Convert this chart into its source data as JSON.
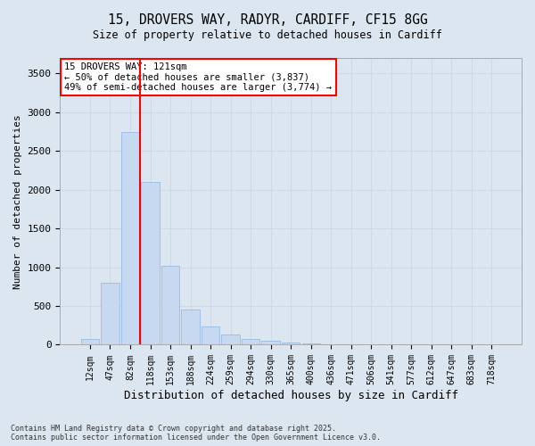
{
  "title_line1": "15, DROVERS WAY, RADYR, CARDIFF, CF15 8GG",
  "title_line2": "Size of property relative to detached houses in Cardiff",
  "xlabel": "Distribution of detached houses by size in Cardiff",
  "ylabel": "Number of detached properties",
  "categories": [
    "12sqm",
    "47sqm",
    "82sqm",
    "118sqm",
    "153sqm",
    "188sqm",
    "224sqm",
    "259sqm",
    "294sqm",
    "330sqm",
    "365sqm",
    "400sqm",
    "436sqm",
    "471sqm",
    "506sqm",
    "541sqm",
    "577sqm",
    "612sqm",
    "647sqm",
    "683sqm",
    "718sqm"
  ],
  "values": [
    80,
    800,
    2750,
    2100,
    1020,
    460,
    240,
    130,
    80,
    50,
    30,
    20,
    10,
    5,
    3,
    2,
    1,
    1,
    0,
    0,
    0
  ],
  "bar_color": "#c6d9f1",
  "bar_edge_color": "#8db3e2",
  "red_line_x": 2.5,
  "annotation_line1": "15 DROVERS WAY: 121sqm",
  "annotation_line2": "← 50% of detached houses are smaller (3,837)",
  "annotation_line3": "49% of semi-detached houses are larger (3,774) →",
  "ylim": [
    0,
    3700
  ],
  "yticks": [
    0,
    500,
    1000,
    1500,
    2000,
    2500,
    3000,
    3500
  ],
  "grid_color": "#d0d8e8",
  "background_color": "#dce6f0",
  "plot_bg_color": "#dce6f0",
  "footer_line1": "Contains HM Land Registry data © Crown copyright and database right 2025.",
  "footer_line2": "Contains public sector information licensed under the Open Government Licence v3.0."
}
